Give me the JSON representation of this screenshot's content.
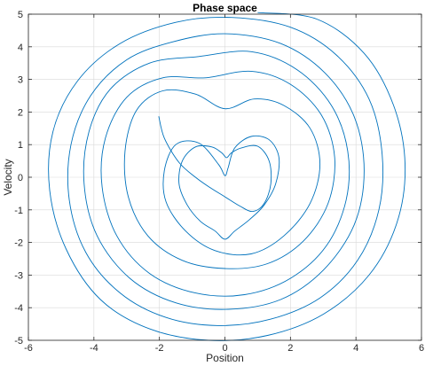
{
  "chart_data": {
    "type": "line",
    "title": "Phase space",
    "xlabel": "Position",
    "ylabel": "Velocity",
    "xlim": [
      -6,
      6
    ],
    "ylim": [
      -5,
      5
    ],
    "x_ticks": [
      -6,
      -4,
      -2,
      0,
      2,
      4,
      6
    ],
    "y_ticks": [
      -5,
      -4,
      -3,
      -2,
      -1,
      0,
      1,
      2,
      3,
      4,
      5
    ],
    "x_tick_labels": [
      "-6",
      "-4",
      "-2",
      "0",
      "2",
      "4",
      "6"
    ],
    "y_tick_labels": [
      "-5",
      "-4",
      "-3",
      "-2",
      "-1",
      "0",
      "1",
      "2",
      "3",
      "4",
      "5"
    ],
    "grid": true,
    "legend": "none",
    "line_color": "#0072bd",
    "series": [
      {
        "values": [
          [
            -2.02,
            1.87
          ],
          [
            -1.85,
            1.2
          ],
          [
            -1.4,
            0.45
          ],
          [
            -0.9,
            0.0
          ],
          [
            -0.45,
            -0.32
          ],
          [
            0.0,
            -0.6
          ],
          [
            0.45,
            -0.88
          ],
          [
            0.85,
            -1.05
          ],
          [
            1.2,
            -0.8
          ],
          [
            1.4,
            -0.2
          ],
          [
            1.35,
            0.5
          ],
          [
            1.0,
            0.95
          ],
          [
            0.5,
            0.9
          ],
          [
            0.2,
            0.75
          ],
          [
            0.05,
            0.6
          ],
          [
            -0.1,
            0.75
          ],
          [
            -0.4,
            0.93
          ],
          [
            -0.9,
            0.93
          ],
          [
            -1.3,
            0.5
          ],
          [
            -1.4,
            -0.2
          ],
          [
            -1.15,
            -0.85
          ],
          [
            -0.75,
            -1.35
          ],
          [
            -0.3,
            -1.65
          ],
          [
            0.0,
            -1.9
          ],
          [
            0.3,
            -1.65
          ],
          [
            0.75,
            -1.3
          ],
          [
            1.2,
            -0.85
          ],
          [
            1.55,
            -0.2
          ],
          [
            1.65,
            0.6
          ],
          [
            1.35,
            1.15
          ],
          [
            0.8,
            1.25
          ],
          [
            0.3,
            0.9
          ],
          [
            0.1,
            0.3
          ],
          [
            0.0,
            0.05
          ],
          [
            -0.2,
            0.4
          ],
          [
            -0.8,
            1.05
          ],
          [
            -1.5,
            1.0
          ],
          [
            -1.85,
            0.2
          ],
          [
            -1.8,
            -0.75
          ],
          [
            -1.2,
            -1.65
          ],
          [
            -0.3,
            -2.25
          ],
          [
            0.8,
            -2.35
          ],
          [
            1.8,
            -1.8
          ],
          [
            2.6,
            -0.8
          ],
          [
            2.9,
            0.4
          ],
          [
            2.6,
            1.5
          ],
          [
            1.8,
            2.2
          ],
          [
            0.9,
            2.4
          ],
          [
            0.0,
            2.1
          ],
          [
            -0.9,
            2.55
          ],
          [
            -1.9,
            2.65
          ],
          [
            -2.7,
            2.05
          ],
          [
            -3.05,
            0.8
          ],
          [
            -2.95,
            -0.6
          ],
          [
            -2.35,
            -1.8
          ],
          [
            -1.3,
            -2.55
          ],
          [
            0.0,
            -2.8
          ],
          [
            1.3,
            -2.65
          ],
          [
            2.4,
            -1.95
          ],
          [
            3.15,
            -0.8
          ],
          [
            3.35,
            0.6
          ],
          [
            2.95,
            1.9
          ],
          [
            2.0,
            2.85
          ],
          [
            0.8,
            3.25
          ],
          [
            -0.6,
            3.05
          ],
          [
            -1.9,
            3.05
          ],
          [
            -3.0,
            2.45
          ],
          [
            -3.65,
            1.2
          ],
          [
            -3.75,
            -0.3
          ],
          [
            -3.3,
            -1.8
          ],
          [
            -2.3,
            -2.95
          ],
          [
            -0.9,
            -3.55
          ],
          [
            0.6,
            -3.6
          ],
          [
            2.0,
            -3.1
          ],
          [
            3.1,
            -2.1
          ],
          [
            3.7,
            -0.7
          ],
          [
            3.75,
            0.8
          ],
          [
            3.25,
            2.2
          ],
          [
            2.2,
            3.3
          ],
          [
            0.8,
            3.85
          ],
          [
            -0.8,
            3.7
          ],
          [
            -2.3,
            3.5
          ],
          [
            -3.5,
            2.7
          ],
          [
            -4.15,
            1.4
          ],
          [
            -4.3,
            -0.2
          ],
          [
            -3.9,
            -1.8
          ],
          [
            -2.9,
            -3.1
          ],
          [
            -1.5,
            -3.85
          ],
          [
            0.1,
            -4.05
          ],
          [
            1.7,
            -3.75
          ],
          [
            3.0,
            -2.85
          ],
          [
            3.95,
            -1.45
          ],
          [
            4.25,
            0.2
          ],
          [
            3.95,
            1.85
          ],
          [
            3.05,
            3.2
          ],
          [
            1.7,
            4.1
          ],
          [
            0.0,
            4.4
          ],
          [
            -1.6,
            4.15
          ],
          [
            -3.0,
            3.6
          ],
          [
            -4.1,
            2.5
          ],
          [
            -4.7,
            1.0
          ],
          [
            -4.75,
            -0.7
          ],
          [
            -4.25,
            -2.3
          ],
          [
            -3.2,
            -3.55
          ],
          [
            -1.8,
            -4.3
          ],
          [
            -0.2,
            -4.55
          ],
          [
            1.4,
            -4.35
          ],
          [
            2.9,
            -3.7
          ],
          [
            4.05,
            -2.55
          ],
          [
            4.7,
            -1.0
          ],
          [
            4.8,
            0.7
          ],
          [
            4.4,
            2.4
          ],
          [
            3.4,
            3.75
          ],
          [
            2.0,
            4.6
          ],
          [
            0.2,
            4.9
          ],
          [
            -1.5,
            4.75
          ],
          [
            -3.2,
            4.1
          ],
          [
            -4.5,
            2.95
          ],
          [
            -5.25,
            1.4
          ],
          [
            -5.35,
            -0.4
          ],
          [
            -4.85,
            -2.2
          ],
          [
            -3.8,
            -3.75
          ],
          [
            -2.3,
            -4.65
          ],
          [
            -0.5,
            -5.0
          ],
          [
            1.3,
            -4.85
          ],
          [
            3.0,
            -4.2
          ],
          [
            4.4,
            -3.0
          ],
          [
            5.25,
            -1.4
          ],
          [
            5.5,
            0.4
          ],
          [
            5.15,
            2.2
          ],
          [
            4.25,
            3.8
          ],
          [
            2.8,
            4.85
          ],
          [
            1.0,
            5.05
          ]
        ]
      }
    ]
  }
}
